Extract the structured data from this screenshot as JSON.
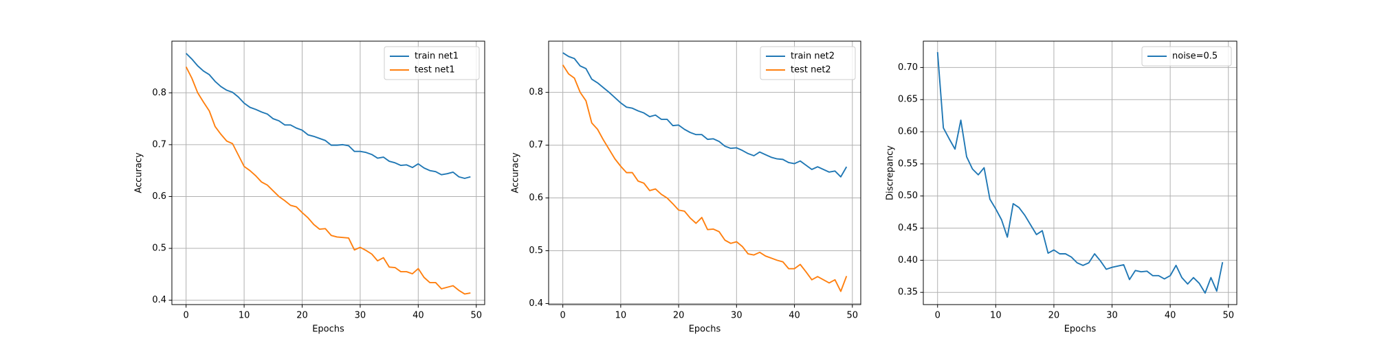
{
  "chart_data": [
    {
      "type": "line",
      "xlabel": "Epochs",
      "ylabel": "Accuracy",
      "grid": true,
      "legend": "upper right",
      "x": [
        0,
        1,
        2,
        3,
        4,
        5,
        6,
        7,
        8,
        9,
        10,
        11,
        12,
        13,
        14,
        15,
        16,
        17,
        18,
        19,
        20,
        21,
        22,
        23,
        24,
        25,
        26,
        27,
        28,
        29,
        30,
        31,
        32,
        33,
        34,
        35,
        36,
        37,
        38,
        39,
        40,
        41,
        42,
        43,
        44,
        45,
        46,
        47,
        48,
        49
      ],
      "xlim": [
        -2.45,
        51.45
      ],
      "xticks": [
        0,
        10,
        20,
        30,
        40,
        50
      ],
      "ylim": [
        0.3916,
        0.8996
      ],
      "yticks": [
        0.4,
        0.5,
        0.6,
        0.7,
        0.8
      ],
      "series": [
        {
          "name": "train net1",
          "color": "#1f77b4",
          "values": [
            0.876,
            0.865,
            0.852,
            0.842,
            0.835,
            0.822,
            0.812,
            0.805,
            0.801,
            0.792,
            0.78,
            0.772,
            0.768,
            0.763,
            0.759,
            0.75,
            0.746,
            0.738,
            0.738,
            0.732,
            0.728,
            0.719,
            0.716,
            0.712,
            0.708,
            0.699,
            0.699,
            0.7,
            0.698,
            0.687,
            0.687,
            0.685,
            0.681,
            0.674,
            0.676,
            0.668,
            0.665,
            0.66,
            0.661,
            0.656,
            0.663,
            0.655,
            0.65,
            0.648,
            0.642,
            0.644,
            0.647,
            0.638,
            0.635,
            0.638
          ]
        },
        {
          "name": "test net1",
          "color": "#ff7f0e",
          "values": [
            0.85,
            0.828,
            0.8,
            0.782,
            0.765,
            0.735,
            0.72,
            0.707,
            0.702,
            0.68,
            0.658,
            0.65,
            0.64,
            0.628,
            0.622,
            0.611,
            0.6,
            0.592,
            0.583,
            0.58,
            0.569,
            0.559,
            0.546,
            0.537,
            0.538,
            0.525,
            0.522,
            0.521,
            0.52,
            0.497,
            0.502,
            0.496,
            0.489,
            0.476,
            0.482,
            0.464,
            0.463,
            0.455,
            0.455,
            0.451,
            0.461,
            0.444,
            0.434,
            0.434,
            0.422,
            0.425,
            0.428,
            0.419,
            0.412,
            0.414
          ]
        }
      ]
    },
    {
      "type": "line",
      "xlabel": "Epochs",
      "ylabel": "Accuracy",
      "grid": true,
      "legend": "upper right",
      "x": [
        0,
        1,
        2,
        3,
        4,
        5,
        6,
        7,
        8,
        9,
        10,
        11,
        12,
        13,
        14,
        15,
        16,
        17,
        18,
        19,
        20,
        21,
        22,
        23,
        24,
        25,
        26,
        27,
        28,
        29,
        30,
        31,
        32,
        33,
        34,
        35,
        36,
        37,
        38,
        39,
        40,
        41,
        42,
        43,
        44,
        45,
        46,
        47,
        48,
        49
      ],
      "xlim": [
        -2.45,
        51.45
      ],
      "xticks": [
        0,
        10,
        20,
        30,
        40,
        50
      ],
      "ylim": [
        0.398,
        0.897
      ],
      "yticks": [
        0.4,
        0.5,
        0.6,
        0.7,
        0.8
      ],
      "series": [
        {
          "name": "train net2",
          "color": "#1f77b4",
          "values": [
            0.875,
            0.868,
            0.864,
            0.85,
            0.845,
            0.825,
            0.818,
            0.809,
            0.8,
            0.79,
            0.78,
            0.772,
            0.77,
            0.765,
            0.761,
            0.754,
            0.757,
            0.749,
            0.749,
            0.737,
            0.738,
            0.73,
            0.724,
            0.72,
            0.72,
            0.711,
            0.712,
            0.707,
            0.698,
            0.694,
            0.695,
            0.69,
            0.684,
            0.68,
            0.687,
            0.682,
            0.677,
            0.674,
            0.673,
            0.667,
            0.665,
            0.67,
            0.662,
            0.654,
            0.659,
            0.654,
            0.649,
            0.651,
            0.64,
            0.659
          ]
        },
        {
          "name": "test net2",
          "color": "#ff7f0e",
          "values": [
            0.852,
            0.835,
            0.827,
            0.8,
            0.784,
            0.742,
            0.73,
            0.71,
            0.692,
            0.674,
            0.66,
            0.648,
            0.648,
            0.632,
            0.628,
            0.614,
            0.617,
            0.607,
            0.6,
            0.589,
            0.577,
            0.575,
            0.562,
            0.552,
            0.563,
            0.54,
            0.541,
            0.536,
            0.52,
            0.514,
            0.517,
            0.508,
            0.494,
            0.492,
            0.497,
            0.49,
            0.486,
            0.482,
            0.479,
            0.466,
            0.466,
            0.474,
            0.46,
            0.445,
            0.451,
            0.445,
            0.439,
            0.445,
            0.423,
            0.452
          ]
        }
      ]
    },
    {
      "type": "line",
      "xlabel": "Epochs",
      "ylabel": "Discrepancy",
      "grid": true,
      "legend": "upper right",
      "x": [
        0,
        1,
        2,
        3,
        4,
        5,
        6,
        7,
        8,
        9,
        10,
        11,
        12,
        13,
        14,
        15,
        16,
        17,
        18,
        19,
        20,
        21,
        22,
        23,
        24,
        25,
        26,
        27,
        28,
        29,
        30,
        31,
        32,
        33,
        34,
        35,
        36,
        37,
        38,
        39,
        40,
        41,
        42,
        43,
        44,
        45,
        46,
        47,
        48,
        49
      ],
      "xlim": [
        -2.45,
        51.45
      ],
      "xticks": [
        0,
        10,
        20,
        30,
        40,
        50
      ],
      "ylim": [
        0.331,
        0.741
      ],
      "yticks": [
        {
          "value": 0.35,
          "label": "0.35"
        },
        {
          "value": 0.4,
          "label": "0.40"
        },
        {
          "value": 0.45,
          "label": "0.45"
        },
        {
          "value": 0.5,
          "label": "0.50"
        },
        {
          "value": 0.55,
          "label": "0.55"
        },
        {
          "value": 0.6,
          "label": "0.60"
        },
        {
          "value": 0.65,
          "label": "0.65"
        },
        {
          "value": 0.7,
          "label": "0.70"
        }
      ],
      "series": [
        {
          "name": "noise=0.5",
          "color": "#1f77b4",
          "values": [
            0.724,
            0.606,
            0.589,
            0.573,
            0.618,
            0.561,
            0.542,
            0.533,
            0.544,
            0.495,
            0.48,
            0.463,
            0.436,
            0.488,
            0.482,
            0.47,
            0.455,
            0.44,
            0.446,
            0.411,
            0.416,
            0.41,
            0.41,
            0.405,
            0.396,
            0.392,
            0.396,
            0.41,
            0.399,
            0.386,
            0.389,
            0.391,
            0.393,
            0.37,
            0.384,
            0.382,
            0.383,
            0.376,
            0.376,
            0.371,
            0.376,
            0.392,
            0.373,
            0.363,
            0.373,
            0.364,
            0.349,
            0.373,
            0.352,
            0.397
          ]
        }
      ]
    }
  ]
}
